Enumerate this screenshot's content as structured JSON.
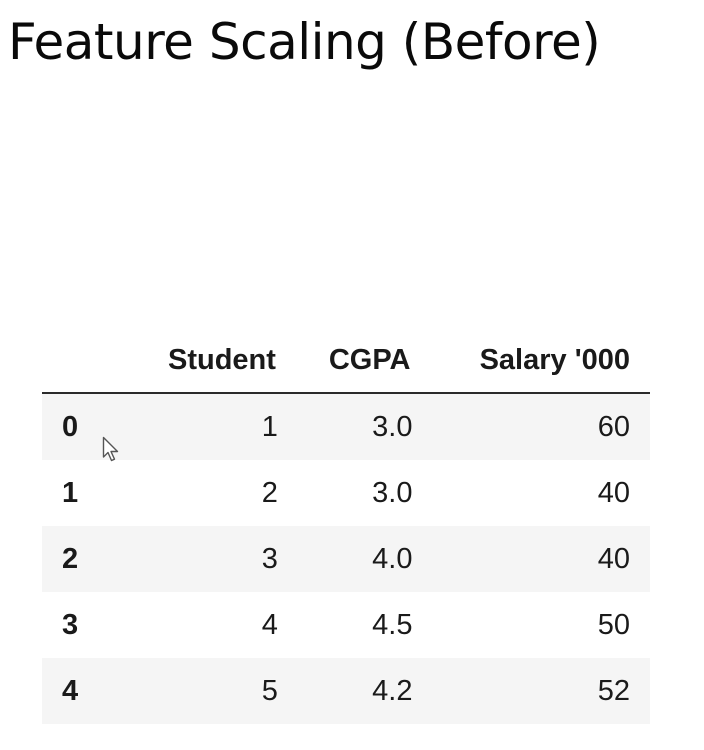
{
  "slide": {
    "title": "Feature Scaling (Before)"
  },
  "table": {
    "columns": [
      "",
      "Student",
      "CGPA",
      "Salary '000"
    ],
    "rows": [
      {
        "index": "0",
        "student": "1",
        "cgpa": "3.0",
        "salary": "60"
      },
      {
        "index": "1",
        "student": "2",
        "cgpa": "3.0",
        "salary": "40"
      },
      {
        "index": "2",
        "student": "3",
        "cgpa": "4.0",
        "salary": "40"
      },
      {
        "index": "3",
        "student": "4",
        "cgpa": "4.5",
        "salary": "50"
      },
      {
        "index": "4",
        "student": "5",
        "cgpa": "4.2",
        "salary": "52"
      }
    ]
  },
  "colors": {
    "stripe": "#f5f5f5",
    "header_rule": "#2b2b2b",
    "text": "#1a1a1a"
  },
  "icons": {
    "pointer": "mouse-pointer-icon"
  }
}
